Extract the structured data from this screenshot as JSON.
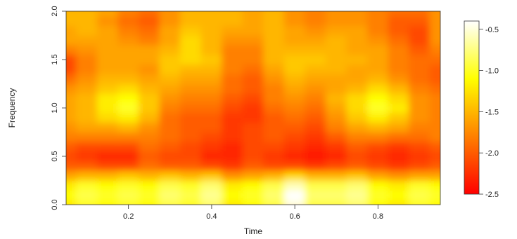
{
  "chart_data": {
    "type": "heatmap",
    "title": "",
    "xlabel": "Time",
    "ylabel": "Frequency",
    "xlim": [
      0.05,
      0.95
    ],
    "ylim": [
      0.0,
      2.0
    ],
    "x_ticks": [
      {
        "value": 0.2,
        "label": "0.2"
      },
      {
        "value": 0.4,
        "label": "0.4"
      },
      {
        "value": 0.6,
        "label": "0.6"
      },
      {
        "value": 0.8,
        "label": "0.8"
      }
    ],
    "y_ticks": [
      {
        "value": 0.0,
        "label": "0.0"
      },
      {
        "value": 0.5,
        "label": "0.5"
      },
      {
        "value": 1.0,
        "label": "1.0"
      },
      {
        "value": 1.5,
        "label": "1.5"
      },
      {
        "value": 2.0,
        "label": "2.0"
      }
    ],
    "colorbar": {
      "range": [
        -2.5,
        -0.4
      ],
      "ticks": [
        {
          "value": -0.5,
          "label": "-0.5"
        },
        {
          "value": -1.0,
          "label": "-1.0"
        },
        {
          "value": -1.5,
          "label": "-1.5"
        },
        {
          "value": -2.0,
          "label": "-2.0"
        },
        {
          "value": -2.5,
          "label": "-2.5"
        }
      ],
      "colors": [
        "#ff0000",
        "#ff4000",
        "#ff8000",
        "#ffbf00",
        "#ffff00",
        "#ffff80",
        "#ffffff"
      ]
    },
    "x": [
      0.05,
      0.1,
      0.15,
      0.2,
      0.25,
      0.3,
      0.35,
      0.4,
      0.45,
      0.5,
      0.55,
      0.6,
      0.65,
      0.7,
      0.75,
      0.8,
      0.85,
      0.9,
      0.95
    ],
    "y": [
      0.0,
      0.1,
      0.2,
      0.3,
      0.4,
      0.5,
      0.6,
      0.7,
      0.8,
      0.9,
      1.0,
      1.1,
      1.2,
      1.3,
      1.4,
      1.5,
      1.6,
      1.7,
      1.8,
      1.9,
      2.0
    ],
    "z": [
      [
        -1.2,
        -1.0,
        -1.1,
        -1.0,
        -1.1,
        -0.9,
        -1.0,
        -0.8,
        -1.2,
        -1.1,
        -0.9,
        -0.5,
        -0.9,
        -0.9,
        -0.8,
        -1.1,
        -1.2,
        -1.0,
        -1.1
      ],
      [
        -1.1,
        -0.9,
        -1.0,
        -0.9,
        -1.0,
        -0.8,
        -0.9,
        -0.7,
        -1.1,
        -1.0,
        -0.8,
        -0.4,
        -0.8,
        -0.8,
        -0.7,
        -1.0,
        -1.1,
        -0.9,
        -1.0
      ],
      [
        -1.2,
        -1.0,
        -1.1,
        -1.0,
        -1.1,
        -0.9,
        -1.0,
        -0.8,
        -1.2,
        -1.1,
        -0.9,
        -0.6,
        -0.9,
        -0.9,
        -0.8,
        -1.1,
        -1.2,
        -1.0,
        -1.1
      ],
      [
        -1.6,
        -1.5,
        -1.5,
        -1.4,
        -1.5,
        -1.4,
        -1.5,
        -1.4,
        -1.7,
        -1.6,
        -1.5,
        -1.3,
        -1.5,
        -1.5,
        -1.4,
        -1.6,
        -1.7,
        -1.6,
        -1.6
      ],
      [
        -2.0,
        -2.0,
        -2.1,
        -2.1,
        -1.9,
        -2.0,
        -2.0,
        -2.1,
        -2.2,
        -2.0,
        -2.1,
        -2.1,
        -2.2,
        -2.1,
        -2.0,
        -2.1,
        -2.2,
        -2.1,
        -2.0
      ],
      [
        -2.1,
        -2.2,
        -2.3,
        -2.3,
        -2.0,
        -2.1,
        -2.1,
        -2.3,
        -2.3,
        -2.1,
        -2.2,
        -2.3,
        -2.4,
        -2.3,
        -2.1,
        -2.2,
        -2.3,
        -2.2,
        -2.1
      ],
      [
        -2.0,
        -2.1,
        -2.1,
        -2.1,
        -1.9,
        -2.0,
        -2.1,
        -2.2,
        -2.3,
        -2.1,
        -2.1,
        -2.2,
        -2.3,
        -2.2,
        -2.0,
        -2.1,
        -2.2,
        -2.1,
        -2.0
      ],
      [
        -1.8,
        -1.8,
        -1.8,
        -1.8,
        -1.8,
        -1.9,
        -2.0,
        -2.1,
        -2.2,
        -2.1,
        -2.0,
        -2.1,
        -2.2,
        -2.0,
        -1.8,
        -1.8,
        -1.9,
        -1.9,
        -1.8
      ],
      [
        -1.7,
        -1.6,
        -1.6,
        -1.5,
        -1.7,
        -1.9,
        -2.0,
        -2.0,
        -2.2,
        -2.1,
        -2.0,
        -2.0,
        -2.1,
        -1.8,
        -1.6,
        -1.5,
        -1.6,
        -1.8,
        -1.8
      ],
      [
        -1.6,
        -1.5,
        -1.3,
        -1.2,
        -1.5,
        -1.9,
        -2.0,
        -2.0,
        -2.2,
        -2.2,
        -2.0,
        -1.9,
        -2.0,
        -1.7,
        -1.4,
        -1.2,
        -1.4,
        -1.7,
        -1.8
      ],
      [
        -1.6,
        -1.5,
        -1.2,
        -1.0,
        -1.4,
        -1.8,
        -1.9,
        -1.9,
        -2.1,
        -2.2,
        -1.9,
        -1.8,
        -1.9,
        -1.6,
        -1.3,
        -1.0,
        -1.2,
        -1.7,
        -1.8
      ],
      [
        -1.6,
        -1.5,
        -1.2,
        -1.1,
        -1.4,
        -1.7,
        -1.8,
        -1.8,
        -2.0,
        -2.1,
        -1.8,
        -1.7,
        -1.8,
        -1.5,
        -1.3,
        -1.1,
        -1.3,
        -1.7,
        -1.8
      ],
      [
        -1.7,
        -1.6,
        -1.4,
        -1.3,
        -1.5,
        -1.6,
        -1.7,
        -1.7,
        -1.9,
        -2.0,
        -1.8,
        -1.6,
        -1.7,
        -1.6,
        -1.5,
        -1.3,
        -1.5,
        -1.8,
        -1.9
      ],
      [
        -1.9,
        -1.7,
        -1.5,
        -1.5,
        -1.6,
        -1.5,
        -1.6,
        -1.6,
        -1.9,
        -2.0,
        -1.7,
        -1.5,
        -1.6,
        -1.6,
        -1.6,
        -1.5,
        -1.7,
        -1.9,
        -2.0
      ],
      [
        -2.1,
        -1.8,
        -1.6,
        -1.6,
        -1.7,
        -1.4,
        -1.5,
        -1.5,
        -1.8,
        -1.9,
        -1.6,
        -1.4,
        -1.5,
        -1.5,
        -1.6,
        -1.6,
        -1.8,
        -1.9,
        -2.0
      ],
      [
        -2.1,
        -1.8,
        -1.6,
        -1.6,
        -1.6,
        -1.4,
        -1.3,
        -1.4,
        -1.8,
        -1.8,
        -1.5,
        -1.4,
        -1.4,
        -1.5,
        -1.5,
        -1.6,
        -1.8,
        -1.9,
        -1.9
      ],
      [
        -1.8,
        -1.7,
        -1.6,
        -1.6,
        -1.6,
        -1.5,
        -1.3,
        -1.5,
        -1.8,
        -1.8,
        -1.5,
        -1.5,
        -1.5,
        -1.5,
        -1.6,
        -1.6,
        -1.8,
        -2.0,
        -1.8
      ],
      [
        -1.6,
        -1.6,
        -1.6,
        -1.7,
        -1.8,
        -1.6,
        -1.3,
        -1.5,
        -1.7,
        -1.7,
        -1.5,
        -1.6,
        -1.6,
        -1.5,
        -1.6,
        -1.7,
        -1.9,
        -2.1,
        -1.7
      ],
      [
        -1.6,
        -1.5,
        -1.6,
        -1.8,
        -1.9,
        -1.6,
        -1.4,
        -1.5,
        -1.6,
        -1.6,
        -1.5,
        -1.6,
        -1.7,
        -1.6,
        -1.6,
        -1.8,
        -2.0,
        -2.1,
        -1.7
      ],
      [
        -1.5,
        -1.5,
        -1.7,
        -1.9,
        -2.0,
        -1.7,
        -1.5,
        -1.5,
        -1.5,
        -1.6,
        -1.5,
        -1.7,
        -1.8,
        -1.7,
        -1.7,
        -1.8,
        -2.0,
        -2.0,
        -1.7
      ],
      [
        -1.5,
        -1.5,
        -1.6,
        -1.8,
        -1.9,
        -1.7,
        -1.5,
        -1.5,
        -1.5,
        -1.6,
        -1.5,
        -1.7,
        -1.8,
        -1.7,
        -1.7,
        -1.8,
        -1.9,
        -1.9,
        -1.7
      ]
    ]
  }
}
